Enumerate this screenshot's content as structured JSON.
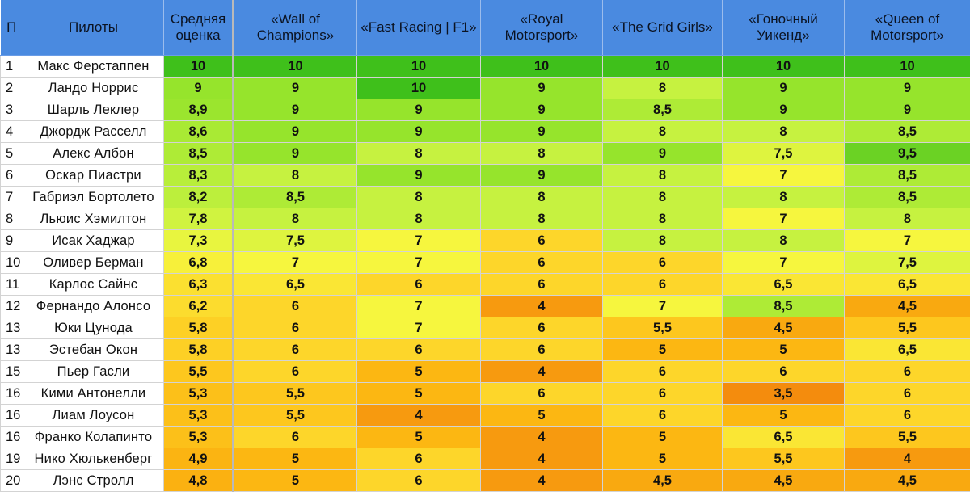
{
  "chart_data": {
    "type": "table",
    "columns": [
      "П",
      "Пилоты",
      "Средняя оценка",
      "«Wall of Champions»",
      "«Fast Racing | F1»",
      "«Royal Motorsport»",
      "«The Grid Girls»",
      "«Гоночный Уикенд»",
      "«Queen of Motorsport»"
    ],
    "rows": [
      {
        "pos": "1",
        "driver": "Макс Ферстаппен",
        "avg": "10",
        "scores": [
          "10",
          "10",
          "10",
          "10",
          "10",
          "10"
        ]
      },
      {
        "pos": "2",
        "driver": "Ландо Норрис",
        "avg": "9",
        "scores": [
          "9",
          "10",
          "9",
          "8",
          "9",
          "9"
        ]
      },
      {
        "pos": "3",
        "driver": "Шарль Леклер",
        "avg": "8,9",
        "scores": [
          "9",
          "9",
          "9",
          "8,5",
          "9",
          "9"
        ]
      },
      {
        "pos": "4",
        "driver": "Джордж Расселл",
        "avg": "8,6",
        "scores": [
          "9",
          "9",
          "9",
          "8",
          "8",
          "8,5"
        ]
      },
      {
        "pos": "5",
        "driver": "Алекс Албон",
        "avg": "8,5",
        "scores": [
          "9",
          "8",
          "8",
          "9",
          "7,5",
          "9,5"
        ]
      },
      {
        "pos": "6",
        "driver": "Оскар Пиастри",
        "avg": "8,3",
        "scores": [
          "8",
          "9",
          "9",
          "8",
          "7",
          "8,5"
        ]
      },
      {
        "pos": "7",
        "driver": "Габриэл Бортолето",
        "avg": "8,2",
        "scores": [
          "8,5",
          "8",
          "8",
          "8",
          "8",
          "8,5"
        ]
      },
      {
        "pos": "8",
        "driver": "Льюис Хэмилтон",
        "avg": "7,8",
        "scores": [
          "8",
          "8",
          "8",
          "8",
          "7",
          "8"
        ]
      },
      {
        "pos": "9",
        "driver": "Исак Хаджар",
        "avg": "7,3",
        "scores": [
          "7,5",
          "7",
          "6",
          "8",
          "8",
          "7"
        ]
      },
      {
        "pos": "10",
        "driver": "Оливер Берман",
        "avg": "6,8",
        "scores": [
          "7",
          "7",
          "6",
          "6",
          "7",
          "7,5"
        ]
      },
      {
        "pos": "11",
        "driver": "Карлос Сайнс",
        "avg": "6,3",
        "scores": [
          "6,5",
          "6",
          "6",
          "6",
          "6,5",
          "6,5"
        ]
      },
      {
        "pos": "12",
        "driver": "Фернандо Алонсо",
        "avg": "6,2",
        "scores": [
          "6",
          "7",
          "4",
          "7",
          "8,5",
          "4,5"
        ]
      },
      {
        "pos": "13",
        "driver": "Юки Цунода",
        "avg": "5,8",
        "scores": [
          "6",
          "7",
          "6",
          "5,5",
          "4,5",
          "5,5"
        ]
      },
      {
        "pos": "13",
        "driver": "Эстебан Окон",
        "avg": "5,8",
        "scores": [
          "6",
          "6",
          "6",
          "5",
          "5",
          "6,5"
        ]
      },
      {
        "pos": "15",
        "driver": "Пьер Гасли",
        "avg": "5,5",
        "scores": [
          "6",
          "5",
          "4",
          "6",
          "6",
          "6"
        ]
      },
      {
        "pos": "16",
        "driver": "Кими Антонелли",
        "avg": "5,3",
        "scores": [
          "5,5",
          "5",
          "6",
          "6",
          "3,5",
          "6"
        ]
      },
      {
        "pos": "16",
        "driver": "Лиам Лоусон",
        "avg": "5,3",
        "scores": [
          "5,5",
          "4",
          "5",
          "6",
          "5",
          "6"
        ]
      },
      {
        "pos": "16",
        "driver": "Франко Колапинто",
        "avg": "5,3",
        "scores": [
          "6",
          "5",
          "4",
          "5",
          "6,5",
          "5,5"
        ]
      },
      {
        "pos": "19",
        "driver": "Нико Хюлькенберг",
        "avg": "4,9",
        "scores": [
          "5",
          "6",
          "4",
          "5",
          "5,5",
          "4"
        ]
      },
      {
        "pos": "20",
        "driver": "Лэнс Стролл",
        "avg": "4,8",
        "scores": [
          "5",
          "6",
          "4",
          "4,5",
          "4,5",
          "4,5"
        ]
      }
    ]
  },
  "colors": {
    "header_bg": "#4a8ae0",
    "score_scale": [
      {
        "value": 3.5,
        "color": "#f48c0d"
      },
      {
        "value": 5,
        "color": "#fcb712"
      },
      {
        "value": 6,
        "color": "#fdd62a"
      },
      {
        "value": 7,
        "color": "#f6f63e"
      },
      {
        "value": 8,
        "color": "#c6f240"
      },
      {
        "value": 9,
        "color": "#96e42c"
      },
      {
        "value": 10,
        "color": "#3fc01b"
      }
    ]
  }
}
